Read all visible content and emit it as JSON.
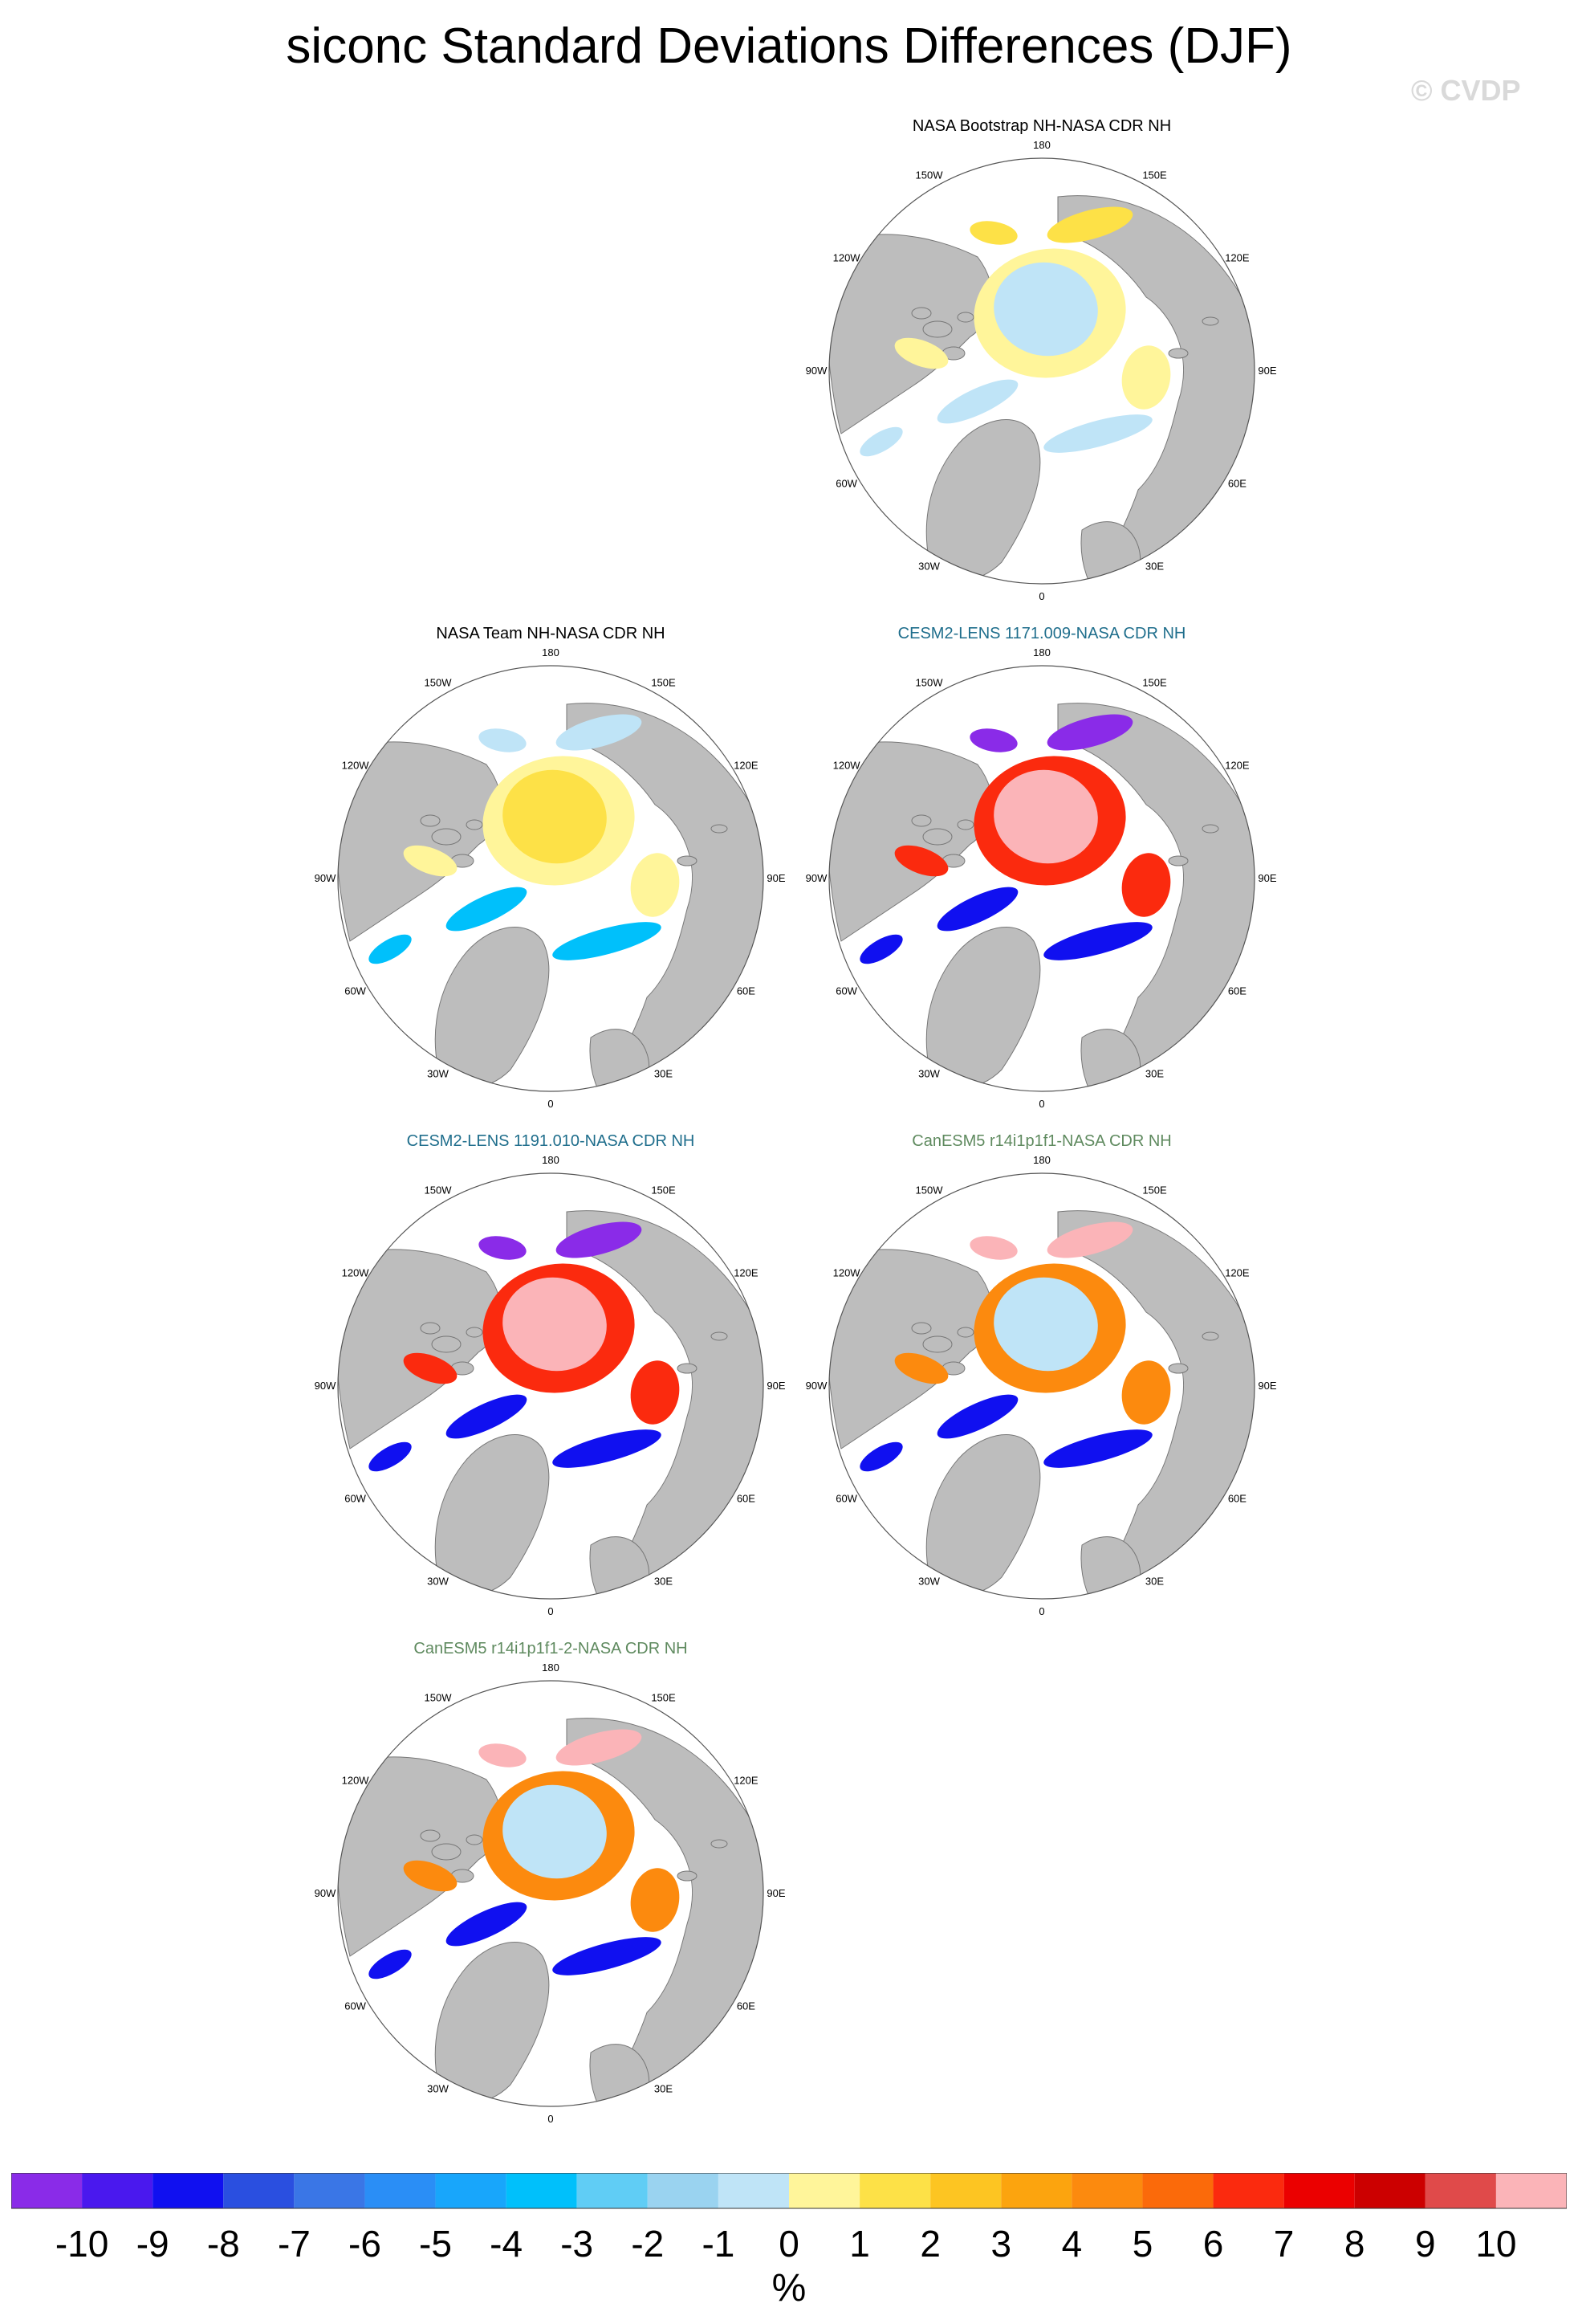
{
  "title": "siconc Standard Deviations Differences (DJF)",
  "watermark": "© CVDP",
  "panels": [
    {
      "title": "NASA Bootstrap NH-NASA CDR NH",
      "title_color": "#000000",
      "style": "bootstrap"
    },
    {
      "title": "NASA Team NH-NASA CDR NH",
      "title_color": "#000000",
      "style": "team"
    },
    {
      "title": "CESM2-LENS 1171.009-NASA CDR NH",
      "title_color": "#1f6e8c",
      "style": "cesm"
    },
    {
      "title": "CESM2-LENS 1191.010-NASA CDR NH",
      "title_color": "#1f6e8c",
      "style": "cesm"
    },
    {
      "title": "CanESM5 r14i1p1f1-NASA CDR NH",
      "title_color": "#5f8a5f",
      "style": "canesm"
    },
    {
      "title": "CanESM5 r14i1p1f1-2-NASA CDR NH",
      "title_color": "#5f8a5f",
      "style": "canesm"
    }
  ],
  "longitude_labels": [
    "180",
    "150E",
    "120E",
    "90E",
    "60E",
    "30E",
    "0",
    "30W",
    "60W",
    "90W",
    "120W",
    "150W"
  ],
  "colorbar": {
    "colors": [
      "#8a2be8",
      "#4a18ee",
      "#1010f0",
      "#2a4fe0",
      "#3a76e6",
      "#2a8ef6",
      "#18a6fb",
      "#00c0fb",
      "#60cdf5",
      "#9ad3f0",
      "#bfe4f7",
      "#fff59a",
      "#fde147",
      "#fdc522",
      "#fca40e",
      "#fc8a0e",
      "#fb6a0a",
      "#fb2a0e",
      "#eb0000",
      "#cc0000",
      "#e04a4a",
      "#fbb4b8"
    ],
    "ticks": [
      "-10",
      "-9",
      "-8",
      "-7",
      "-6",
      "-5",
      "-4",
      "-3",
      "-2",
      "-1",
      "0",
      "1",
      "2",
      "3",
      "4",
      "5",
      "6",
      "7",
      "8",
      "9",
      "10"
    ],
    "units": "%"
  }
}
